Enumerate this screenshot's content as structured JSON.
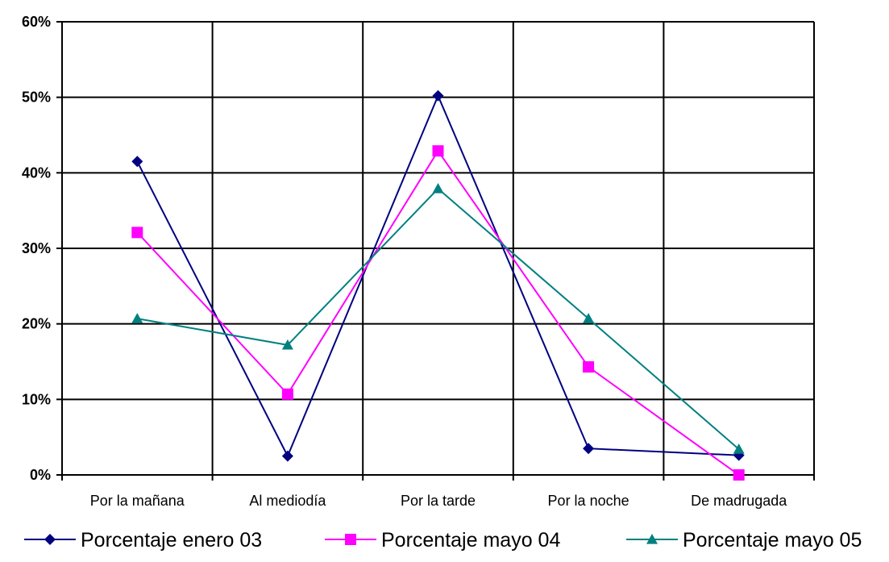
{
  "chart_data": {
    "type": "line",
    "categories": [
      "Por la mañana",
      "Al mediodía",
      "Por la tarde",
      "Por la noche",
      "De madrugada"
    ],
    "ylim": [
      0,
      60
    ],
    "yticks": [
      "0%",
      "10%",
      "20%",
      "30%",
      "40%",
      "50%",
      "60%"
    ],
    "grid": true,
    "legend_position": "bottom",
    "series": [
      {
        "name": "Porcentaje enero 03",
        "color": "#000080",
        "marker": "diamond",
        "values": [
          41.5,
          2.5,
          50.2,
          3.5,
          2.6
        ]
      },
      {
        "name": "Porcentaje mayo 04",
        "color": "#FF00FF",
        "marker": "square",
        "values": [
          32.1,
          10.7,
          42.9,
          14.3,
          0.0
        ]
      },
      {
        "name": "Porcentaje mayo 05",
        "color": "#008080",
        "marker": "triangle",
        "values": [
          20.7,
          17.2,
          37.9,
          20.7,
          3.4
        ]
      }
    ]
  }
}
